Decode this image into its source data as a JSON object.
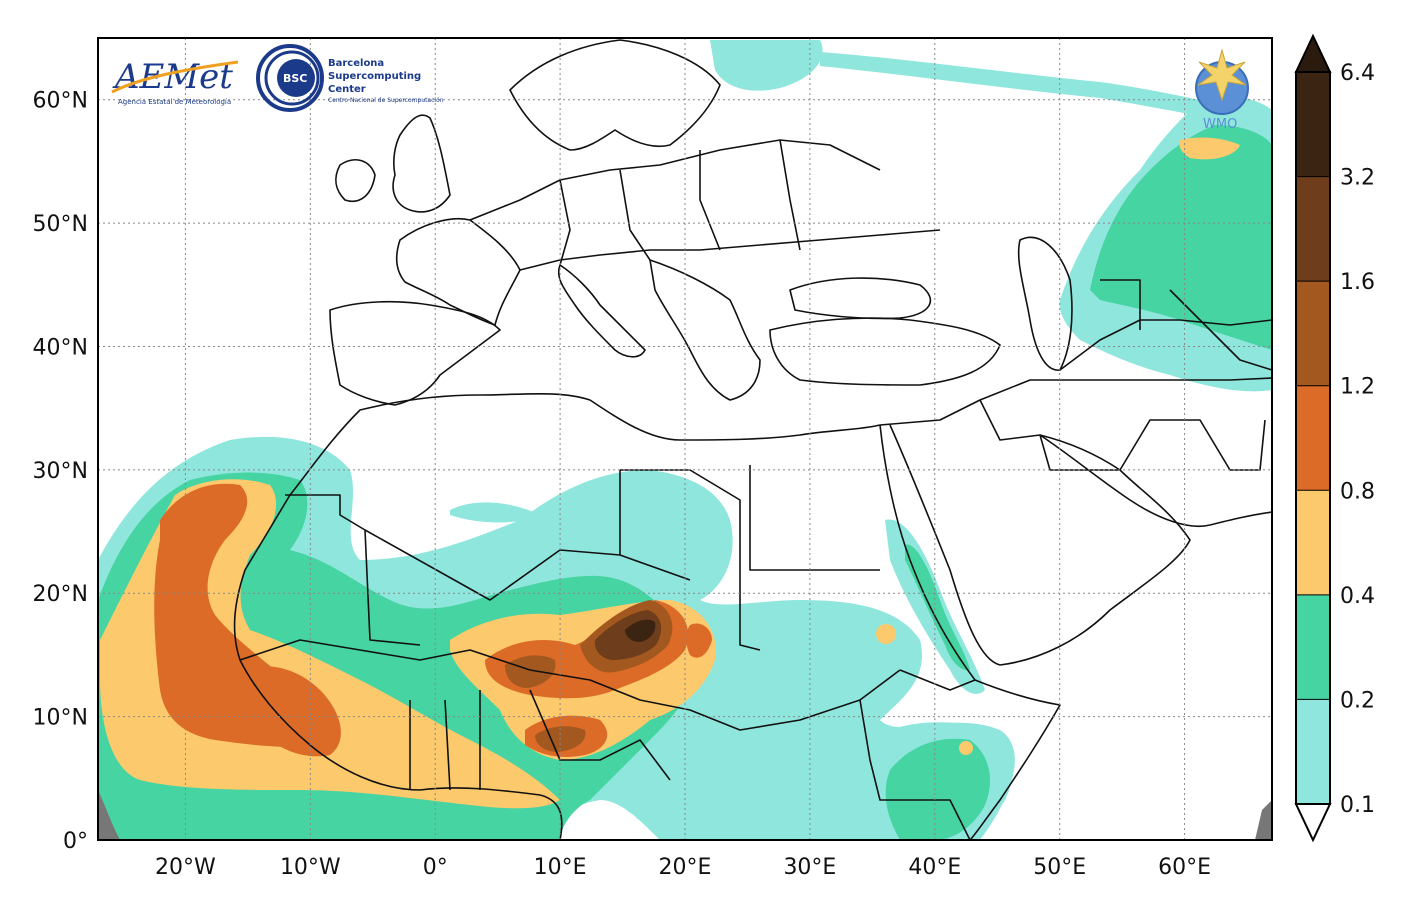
{
  "map": {
    "projection": "cylindrical",
    "lon_range": [
      -27,
      67
    ],
    "lat_range": [
      0,
      65
    ],
    "gridlines": true,
    "gridline_style": "dotted",
    "lat_ticks": [
      {
        "value": 60,
        "label": "60°N"
      },
      {
        "value": 50,
        "label": "50°N"
      },
      {
        "value": 40,
        "label": "40°N"
      },
      {
        "value": 30,
        "label": "30°N"
      },
      {
        "value": 20,
        "label": "20°N"
      },
      {
        "value": 10,
        "label": "10°N"
      },
      {
        "value": 0,
        "label": "0°"
      }
    ],
    "lon_ticks": [
      {
        "value": -20,
        "label": "20°W"
      },
      {
        "value": -10,
        "label": "10°W"
      },
      {
        "value": 0,
        "label": "0°"
      },
      {
        "value": 10,
        "label": "10°E"
      },
      {
        "value": 20,
        "label": "20°E"
      },
      {
        "value": 30,
        "label": "30°E"
      },
      {
        "value": 40,
        "label": "40°E"
      },
      {
        "value": 50,
        "label": "50°E"
      },
      {
        "value": 60,
        "label": "60°E"
      }
    ]
  },
  "colorbar": {
    "levels": [
      "0.1",
      "0.2",
      "0.4",
      "0.8",
      "1.2",
      "1.6",
      "3.2",
      "6.4"
    ],
    "colors": [
      "#8fe6dd",
      "#46d4a2",
      "#fcca6c",
      "#dc6b28",
      "#a2581e",
      "#6e3d1b",
      "#3b2412"
    ],
    "extend": "both",
    "low_color": "#ffffff",
    "high_color": "#2a1b0e"
  },
  "logos": {
    "aemet": {
      "name": "AEMet",
      "subtitle": "Agencia Estatal de Meteorología"
    },
    "bsc": {
      "badge": "BSC",
      "line1": "Barcelona",
      "line2": "Supercomputing",
      "line3": "Center",
      "subtitle": "Centro Nacional de Supercomputación"
    },
    "wmo": {
      "name": "WMO",
      "icon": "wmo-emblem-icon"
    }
  },
  "regions": [
    {
      "name": "west-african-coast-plume",
      "lon": -20,
      "lat": 15,
      "level": "0.8"
    },
    {
      "name": "chad-niger-core",
      "lon": 15,
      "lat": 16,
      "level": "3.2"
    },
    {
      "name": "nigeria-cameroon-core",
      "lon": 10,
      "lat": 8,
      "level": "1.6"
    },
    {
      "name": "central-asia-band",
      "lon": 55,
      "lat": 48,
      "level": "0.2"
    },
    {
      "name": "east-africa-band",
      "lon": 42,
      "lat": 5,
      "level": "0.2"
    },
    {
      "name": "red-sea-band",
      "lon": 37,
      "lat": 18,
      "level": "0.2"
    }
  ]
}
